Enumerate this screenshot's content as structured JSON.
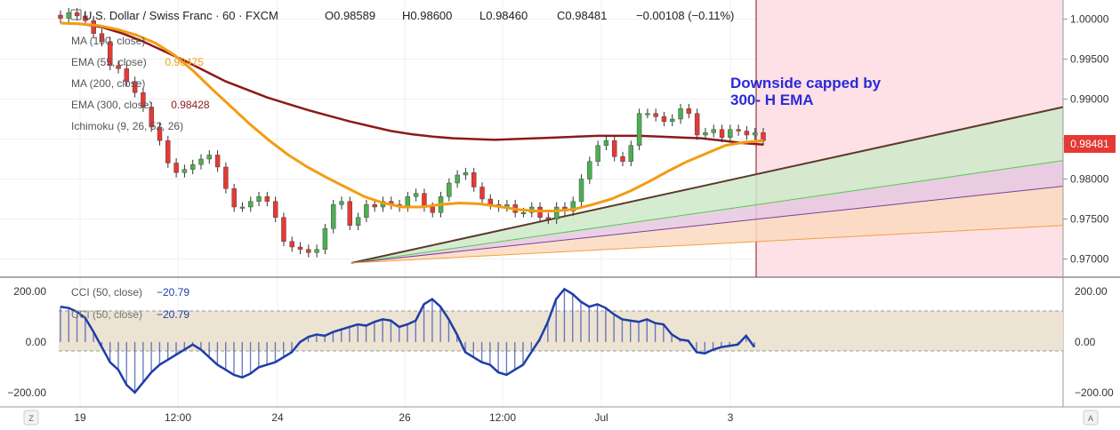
{
  "header": {
    "symbol_title": "U.S. Dollar / Swiss Franc · 60 · FXCM",
    "ohlc": [
      {
        "label": "O",
        "value": "0.98589"
      },
      {
        "label": "H",
        "value": "0.98600"
      },
      {
        "label": "L",
        "value": "0.98460"
      },
      {
        "label": "C",
        "value": "0.98481"
      }
    ],
    "change": "−0.00108 (−0.11%)"
  },
  "indicators": [
    {
      "name": "MA (100, close)",
      "value": "",
      "color": "#999999"
    },
    {
      "name": "EMA (55, close)",
      "value": "0.98475",
      "color": "#f39c12"
    },
    {
      "name": "MA (200, close)",
      "value": "",
      "color": "#999999"
    },
    {
      "name": "EMA (300, close)",
      "value": "0.98428",
      "color": "#8b1a1a"
    },
    {
      "name": "Ichimoku (9, 26, 52, 26)",
      "value": "",
      "color": "#999999"
    }
  ],
  "annotation": {
    "line1": "Downside capped by",
    "line2": "300- H EMA",
    "color": "#2a2ad8"
  },
  "price_badge": {
    "value": "0.98481",
    "color": "#e53935"
  },
  "cci_panel": {
    "label1": "CCI (50, close)",
    "value1": "−20.79",
    "label2": "CCI (50, close)",
    "value2": "−20.79",
    "color": "#1e3ea8"
  },
  "corner_buttons": {
    "left": "Z",
    "right": "A"
  },
  "chart_data": [
    {
      "type": "line",
      "title": "U.S. Dollar / Swiss Franc · 60 · FXCM",
      "y_ticks": [
        "1.00000",
        "0.99500",
        "0.99000",
        "0.98500",
        "0.98000",
        "0.97500",
        "0.97000"
      ],
      "x_ticks": [
        "19",
        "12:00",
        "24",
        "26",
        "12:00",
        "Jul",
        "3"
      ],
      "ylim": [
        0.9685,
        1.0015
      ],
      "series": [
        {
          "name": "Close",
          "values": [
            1.0001,
            1.0008,
            1.0004,
            0.9998,
            0.9982,
            0.9972,
            0.9942,
            0.9938,
            0.9922,
            0.9908,
            0.989,
            0.9865,
            0.9848,
            0.982,
            0.9808,
            0.9812,
            0.9818,
            0.9825,
            0.983,
            0.9815,
            0.9788,
            0.9765,
            0.9765,
            0.9772,
            0.9778,
            0.9772,
            0.9752,
            0.9722,
            0.9715,
            0.9712,
            0.9708,
            0.9712,
            0.9738,
            0.9768,
            0.9772,
            0.9742,
            0.9752,
            0.9768,
            0.9765,
            0.9772,
            0.9768,
            0.9765,
            0.9778,
            0.9782,
            0.9765,
            0.9758,
            0.9778,
            0.9795,
            0.9805,
            0.9808,
            0.979,
            0.9775,
            0.9768,
            0.9765,
            0.9768,
            0.9758,
            0.9758,
            0.9765,
            0.9752,
            0.975,
            0.9765,
            0.976,
            0.9772,
            0.98,
            0.9822,
            0.9842,
            0.9848,
            0.9828,
            0.9822,
            0.9842,
            0.9882,
            0.9882,
            0.9878,
            0.9872,
            0.9875,
            0.9888,
            0.9882,
            0.9855,
            0.9858,
            0.9862,
            0.9852,
            0.9862,
            0.986,
            0.9855,
            0.9858,
            0.9848
          ]
        },
        {
          "name": "EMA (55, close)",
          "values": [
            0.9995,
            0.9994,
            0.9992,
            0.9987,
            0.998,
            0.997,
            0.9955,
            0.9935,
            0.9912,
            0.989,
            0.9868,
            0.9848,
            0.983,
            0.9815,
            0.9802,
            0.979,
            0.9778,
            0.977,
            0.9765,
            0.9765,
            0.9768,
            0.977,
            0.9769,
            0.9766,
            0.9762,
            0.976,
            0.976,
            0.9762,
            0.9768,
            0.9775,
            0.9785,
            0.9797,
            0.981,
            0.9822,
            0.9832,
            0.9842,
            0.9846,
            0.9848
          ]
        },
        {
          "name": "EMA (300, close)",
          "values": [
            0.9995,
            0.9994,
            0.999,
            0.9982,
            0.9972,
            0.996,
            0.9948,
            0.9935,
            0.9922,
            0.9912,
            0.9902,
            0.9894,
            0.9886,
            0.9879,
            0.9872,
            0.9866,
            0.986,
            0.9856,
            0.9853,
            0.9851,
            0.985,
            0.9849,
            0.985,
            0.9851,
            0.9852,
            0.9853,
            0.9854,
            0.9854,
            0.9854,
            0.9853,
            0.9852,
            0.9851,
            0.9848,
            0.9845,
            0.9843
          ]
        }
      ],
      "grid": true
    },
    {
      "type": "line",
      "title": "CCI (50, close)",
      "y_ticks": [
        "200.00",
        "0.00",
        "−200.00"
      ],
      "ylim": [
        -250,
        250
      ],
      "series": [
        {
          "name": "CCI (50, close)",
          "values": [
            140,
            135,
            120,
            95,
            40,
            -20,
            -80,
            -110,
            -170,
            -200,
            -160,
            -120,
            -90,
            -70,
            -50,
            -30,
            -10,
            -30,
            -60,
            -90,
            -110,
            -130,
            -140,
            -125,
            -100,
            -90,
            -80,
            -60,
            -40,
            0,
            20,
            30,
            25,
            40,
            50,
            60,
            70,
            65,
            80,
            90,
            85,
            60,
            70,
            85,
            150,
            170,
            140,
            90,
            30,
            -40,
            -60,
            -80,
            -90,
            -120,
            -130,
            -110,
            -90,
            -40,
            10,
            80,
            170,
            210,
            190,
            160,
            140,
            150,
            135,
            110,
            90,
            85,
            80,
            90,
            75,
            70,
            30,
            10,
            5,
            -40,
            -45,
            -30,
            -20,
            -15,
            -10,
            25,
            -20
          ]
        }
      ],
      "grid": true
    }
  ]
}
